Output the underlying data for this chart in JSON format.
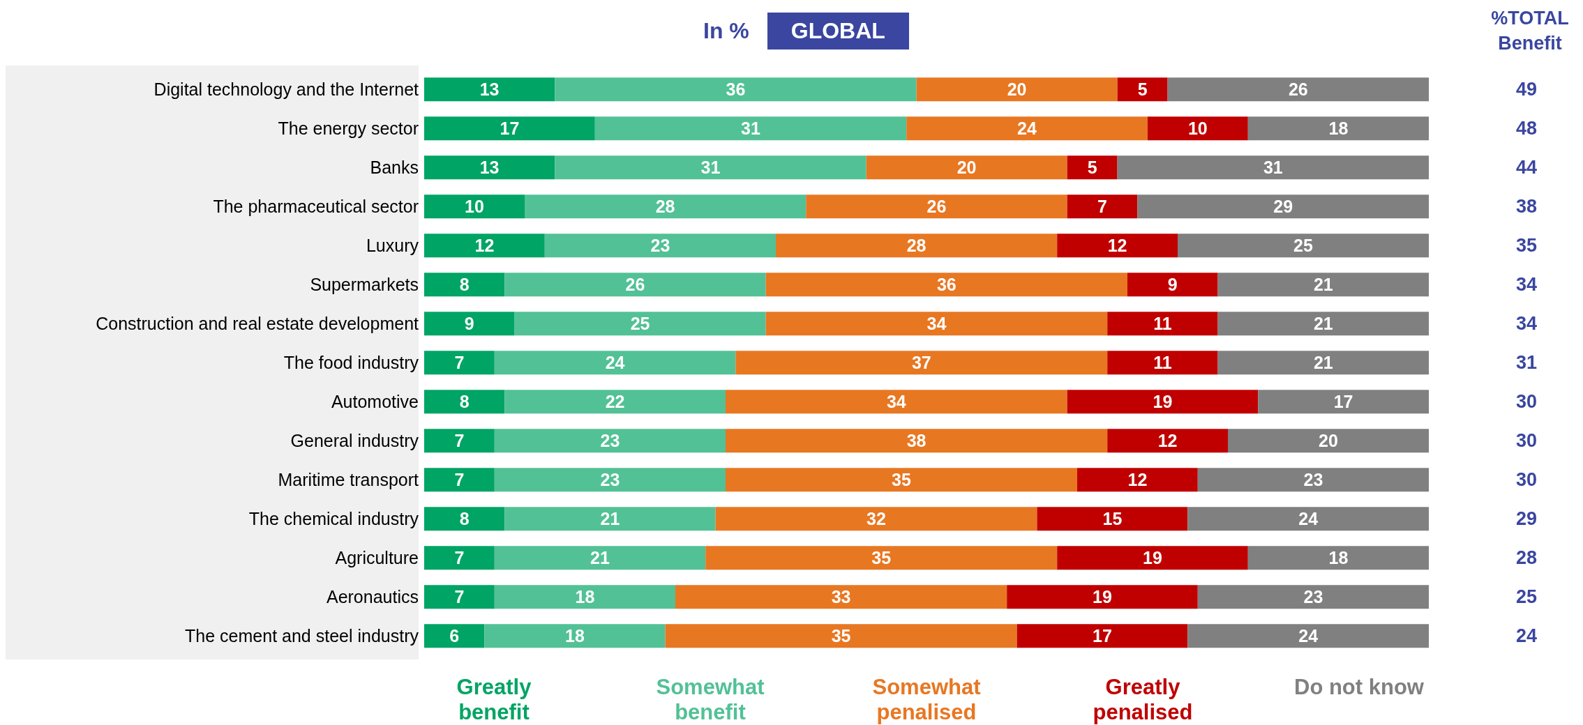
{
  "chart_data": {
    "type": "bar",
    "orientation": "horizontal",
    "stacked": true,
    "title": "In %",
    "subtitle": "GLOBAL",
    "categories": [
      "Digital technology and the Internet",
      "The energy sector",
      "Banks",
      "The pharmaceutical sector",
      "Luxury",
      "Supermarkets",
      "Construction and real estate development",
      "The food industry",
      "Automotive",
      "General industry",
      "Maritime transport",
      "The chemical industry",
      "Agriculture",
      "Aeronautics",
      "The cement and steel industry"
    ],
    "series": [
      {
        "name": "Greatly benefit",
        "color": "#00a464",
        "values": [
          13,
          17,
          13,
          10,
          12,
          8,
          9,
          7,
          8,
          7,
          7,
          8,
          7,
          7,
          6
        ]
      },
      {
        "name": "Somewhat benefit",
        "color": "#52c196",
        "values": [
          36,
          31,
          31,
          28,
          23,
          26,
          25,
          24,
          22,
          23,
          23,
          21,
          21,
          18,
          18
        ]
      },
      {
        "name": "Somewhat penalised",
        "color": "#e87722",
        "values": [
          20,
          24,
          20,
          26,
          28,
          36,
          34,
          37,
          34,
          38,
          35,
          32,
          35,
          33,
          35
        ]
      },
      {
        "name": "Greatly penalised",
        "color": "#c00000",
        "values": [
          5,
          10,
          5,
          7,
          12,
          9,
          11,
          11,
          19,
          12,
          12,
          15,
          19,
          19,
          17
        ]
      },
      {
        "name": "Do not know",
        "color": "#808080",
        "values": [
          26,
          18,
          31,
          29,
          25,
          21,
          21,
          21,
          17,
          20,
          23,
          24,
          18,
          23,
          24
        ]
      }
    ],
    "xlim": [
      0,
      100
    ],
    "tick_labels": "y",
    "data_labels": true,
    "legend": "bottom",
    "grid": false,
    "annotations": [
      "%TOTAL Benefit",
      "49",
      "48",
      "44",
      "38",
      "35",
      "34",
      "34",
      "31",
      "30",
      "30",
      "30",
      "29",
      "28",
      "25",
      "24"
    ]
  }
}
